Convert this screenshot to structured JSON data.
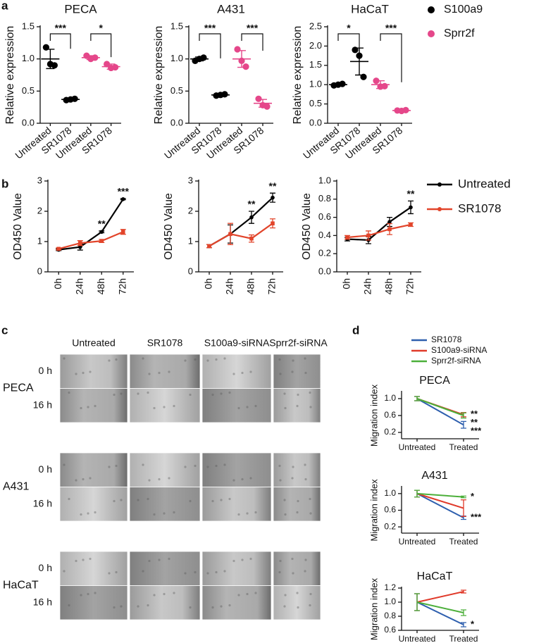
{
  "panel_labels": [
    "a",
    "b",
    "c",
    "d"
  ],
  "micrographs": {
    "columns": [
      "Untreated",
      "SR1078",
      "S100a9-siRNA",
      "Sprr2f-siRNA"
    ],
    "cell_lines": [
      "PECA",
      "A431",
      "HaCaT"
    ],
    "timepoints": [
      "0 h",
      "16 h"
    ]
  },
  "chart_data": [
    {
      "type": "dot",
      "title": "PECA",
      "y_label": "Relative expression",
      "categories": [
        "Untreated",
        "SR1078",
        "Untreated",
        "SR1078"
      ],
      "ylim": [
        0,
        1.5
      ],
      "yticks": [
        {
          "value": 0,
          "label": "0.0"
        },
        {
          "value": 0.5,
          "label": "0.5"
        },
        {
          "value": 1,
          "label": "1.0"
        },
        {
          "value": 1.5,
          "label": "1.5"
        }
      ],
      "series": [
        {
          "color": "#000000",
          "values": [
            [
              1.18,
              0.92,
              0.9
            ],
            [
              0.36,
              0.37,
              0.38
            ],
            null,
            null
          ],
          "means": [
            1.0,
            0.37,
            null,
            null
          ],
          "errors": [
            0.15,
            0.01,
            null,
            null
          ],
          "significance": "***"
        },
        {
          "color": "#e5478a",
          "values": [
            null,
            null,
            [
              1.05,
              1.0,
              1.02
            ],
            [
              0.92,
              0.86,
              0.87
            ]
          ],
          "means": [
            null,
            null,
            1.02,
            0.88
          ],
          "errors": [
            null,
            null,
            0.03,
            0.04
          ],
          "significance": "*"
        }
      ]
    },
    {
      "type": "dot",
      "title": "A431",
      "y_label": "Relative expression",
      "categories": [
        "Untreated",
        "SR1078",
        "Untreated",
        "SR1078"
      ],
      "ylim": [
        0,
        1.5
      ],
      "yticks": [
        {
          "value": 0,
          "label": "0.0"
        },
        {
          "value": 0.5,
          "label": "0.5"
        },
        {
          "value": 1,
          "label": "1.0"
        },
        {
          "value": 1.5,
          "label": "1.5"
        }
      ],
      "series": [
        {
          "color": "#000000",
          "values": [
            [
              0.97,
              1.0,
              1.02
            ],
            [
              0.43,
              0.44,
              0.45
            ],
            null,
            null
          ],
          "means": [
            1.0,
            0.44,
            null,
            null
          ],
          "errors": [
            0.03,
            0.01,
            null,
            null
          ],
          "significance": "***"
        },
        {
          "color": "#e5478a",
          "values": [
            null,
            null,
            [
              1.15,
              0.97,
              0.88
            ],
            [
              0.38,
              0.28,
              0.26
            ]
          ],
          "means": [
            null,
            null,
            1.0,
            0.31
          ],
          "errors": [
            null,
            null,
            0.13,
            0.06
          ],
          "significance": "***"
        }
      ]
    },
    {
      "type": "dot",
      "title": "HaCaT",
      "y_label": "Relative expression",
      "categories": [
        "Untreated",
        "SR1078",
        "Untreated",
        "SR1078"
      ],
      "legend": true,
      "ylim": [
        0,
        2.5
      ],
      "yticks": [
        {
          "value": 0,
          "label": "0.0"
        },
        {
          "value": 0.5,
          "label": "0.5"
        },
        {
          "value": 1,
          "label": "1.0"
        },
        {
          "value": 1.5,
          "label": "1.5"
        },
        {
          "value": 2,
          "label": "2.0"
        },
        {
          "value": 2.5,
          "label": "2.5"
        }
      ],
      "series": [
        {
          "name": "S100a9",
          "color": "#000000",
          "values": [
            [
              0.98,
              1.0,
              1.02
            ],
            [
              1.9,
              1.75,
              1.2
            ],
            null,
            null
          ],
          "means": [
            1.0,
            1.6,
            null,
            null
          ],
          "errors": [
            0.02,
            0.35,
            null,
            null
          ],
          "significance": "*"
        },
        {
          "name": "Sprr2f",
          "color": "#e5478a",
          "values": [
            null,
            null,
            [
              1.1,
              0.95,
              0.96
            ],
            [
              0.33,
              0.32,
              0.34
            ]
          ],
          "means": [
            null,
            null,
            1.0,
            0.33
          ],
          "errors": [
            null,
            null,
            0.1,
            0.01
          ],
          "significance": "***"
        }
      ]
    },
    {
      "type": "line",
      "y_label": "OD450 Value",
      "categories": [
        "0h",
        "24h",
        "48h",
        "72h"
      ],
      "ylim": [
        0,
        3
      ],
      "yticks": [
        0,
        1,
        2,
        3
      ],
      "series": [
        {
          "color": "#000000",
          "values": [
            0.73,
            0.82,
            1.32,
            2.4
          ],
          "errors": [
            0.03,
            0.1,
            0.03,
            0.02
          ],
          "stars": [
            null,
            null,
            "**",
            "***"
          ]
        },
        {
          "color": "#e2452b",
          "values": [
            0.76,
            0.95,
            1.02,
            1.32
          ],
          "errors": [
            0.03,
            0.08,
            0.05,
            0.08
          ]
        }
      ]
    },
    {
      "type": "line",
      "y_label": "OD450 Value",
      "categories": [
        "0h",
        "24h",
        "48h",
        "72h"
      ],
      "ylim": [
        0,
        3
      ],
      "yticks": [
        0,
        1,
        2,
        3
      ],
      "series": [
        {
          "color": "#000000",
          "values": [
            0.85,
            1.25,
            1.8,
            2.45
          ],
          "errors": [
            0.05,
            0.3,
            0.2,
            0.15
          ],
          "stars": [
            null,
            null,
            "**",
            "**"
          ]
        },
        {
          "color": "#e2452b",
          "values": [
            0.85,
            1.25,
            1.1,
            1.6
          ],
          "errors": [
            0.05,
            0.35,
            0.12,
            0.15
          ]
        }
      ]
    },
    {
      "type": "line",
      "y_label": "OD450 Value",
      "categories": [
        "0h",
        "24h",
        "48h",
        "72h"
      ],
      "legend": true,
      "ylim": [
        0,
        1
      ],
      "yticks": [
        {
          "value": 0,
          "label": "0.0"
        },
        0.2,
        0.4,
        0.6,
        0.8,
        {
          "value": 1,
          "label": "1.0"
        }
      ],
      "series": [
        {
          "name": "Untreated",
          "color": "#000000",
          "values": [
            0.36,
            0.35,
            0.55,
            0.71
          ],
          "errors": [
            0.02,
            0.04,
            0.05,
            0.07
          ],
          "stars": [
            null,
            null,
            null,
            "**"
          ]
        },
        {
          "name": "SR1078",
          "color": "#e2452b",
          "values": [
            0.38,
            0.4,
            0.47,
            0.52
          ],
          "errors": [
            0.02,
            0.05,
            0.06,
            0.02
          ]
        }
      ]
    },
    {
      "type": "line",
      "title": "PECA",
      "y_label": "Migration index",
      "categories": [
        "Untreated",
        "Treated"
      ],
      "legend": true,
      "ylim": [
        0.05,
        1.15
      ],
      "yticks": [
        0.2,
        0.6,
        {
          "value": 1,
          "label": "1.0"
        }
      ],
      "series": [
        {
          "name": "SR1078",
          "color": "#2e5fae",
          "values": [
            1.0,
            0.38
          ],
          "errors": [
            0.05,
            0.08
          ],
          "stars": [
            null,
            "***"
          ]
        },
        {
          "name": "S100a9-siRNA",
          "color": "#e03a2a",
          "values": [
            1.0,
            0.62
          ],
          "errors": [
            0.05,
            0.05
          ],
          "stars": [
            null,
            "**"
          ]
        },
        {
          "name": "Sprr2f-siRNA",
          "color": "#4caf3a",
          "values": [
            1.0,
            0.6
          ],
          "errors": [
            0.05,
            0.06
          ],
          "stars": [
            null,
            "**"
          ]
        }
      ]
    },
    {
      "type": "line",
      "title": "A431",
      "y_label": "Migration index",
      "categories": [
        "Untreated",
        "Treated"
      ],
      "ylim": [
        0.05,
        1.15
      ],
      "yticks": [
        0.2,
        0.6,
        {
          "value": 1,
          "label": "1.0"
        }
      ],
      "series": [
        {
          "color": "#2e5fae",
          "values": [
            1.0,
            0.42
          ],
          "errors": [
            0.08,
            0.04
          ],
          "stars": [
            null,
            "***"
          ]
        },
        {
          "color": "#e03a2a",
          "values": [
            1.0,
            0.65
          ],
          "errors": [
            0.08,
            0.2
          ]
        },
        {
          "color": "#4caf3a",
          "values": [
            1.0,
            0.92
          ],
          "errors": [
            0.08,
            0.02
          ],
          "stars": [
            null,
            "*"
          ]
        }
      ]
    },
    {
      "type": "line",
      "title": "HaCaT",
      "y_label": "Migration index",
      "categories": [
        "Untreated",
        "Treated"
      ],
      "ylim": [
        0.6,
        1.2
      ],
      "yticks": [
        0.6,
        0.8,
        {
          "value": 1,
          "label": "1.0"
        },
        1.2
      ],
      "series": [
        {
          "color": "#2e5fae",
          "values": [
            1.0,
            0.68
          ],
          "errors": [
            0.12,
            0.03
          ],
          "stars": [
            null,
            "*"
          ]
        },
        {
          "color": "#e03a2a",
          "values": [
            1.0,
            1.15
          ],
          "errors": [
            0.12,
            0.02
          ]
        },
        {
          "color": "#4caf3a",
          "values": [
            1.0,
            0.85
          ],
          "errors": [
            0.12,
            0.04
          ]
        }
      ]
    }
  ]
}
